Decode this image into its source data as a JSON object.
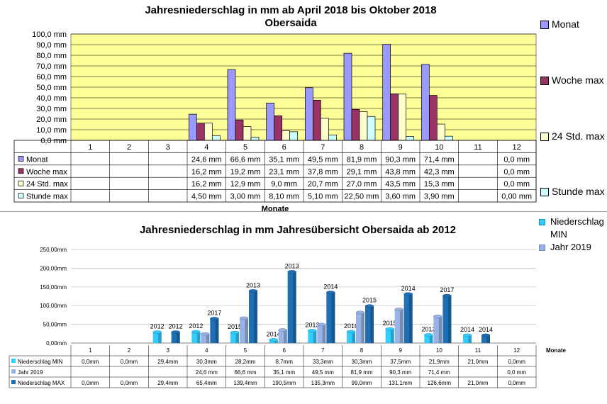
{
  "top_chart": {
    "title_line1": "Jahresniederschlag in mm ab April 2018 bis Oktober 2018",
    "title_line2": "Obersaida",
    "xlabel": "Monate",
    "legend": [
      "Monat",
      "Woche max",
      "24 Std. max",
      "Stunde max"
    ]
  },
  "bottom_chart": {
    "title": "Jahresniederschlag in mm  Jahresübersicht Obersaida ab 2012",
    "xlabel": "Monate",
    "legend": [
      "Niederschlag MIN",
      "Jahr 2019"
    ]
  },
  "chart_data": [
    {
      "type": "bar",
      "title": "Jahresniederschlag in mm ab April 2018 bis Oktober 2018 Obersaida",
      "xlabel": "Monate",
      "ylabel": "",
      "ylim": [
        0,
        100
      ],
      "yticks": [
        "0,0 mm",
        "10,0 mm",
        "20,0 mm",
        "30,0 mm",
        "40,0 mm",
        "50,0 mm",
        "60,0 mm",
        "70,0 mm",
        "80,0 mm",
        "90,0 mm",
        "100,0 mm"
      ],
      "plot_background": "#ffff99",
      "categories": [
        "1",
        "2",
        "3",
        "4",
        "5",
        "6",
        "7",
        "8",
        "9",
        "10",
        "11",
        "12"
      ],
      "series": [
        {
          "name": "Monat",
          "color": "#9999ff",
          "values": [
            null,
            null,
            null,
            24.6,
            66.6,
            35.1,
            49.5,
            81.9,
            90.3,
            71.4,
            null,
            0.0
          ],
          "labels": [
            "",
            "",
            "",
            "24,6 mm",
            "66,6 mm",
            "35,1 mm",
            "49,5 mm",
            "81,9 mm",
            "90,3 mm",
            "71,4 mm",
            "",
            "0,0 mm"
          ]
        },
        {
          "name": "Woche max",
          "color": "#993366",
          "values": [
            null,
            null,
            null,
            16.2,
            19.2,
            23.1,
            37.8,
            29.1,
            43.8,
            42.3,
            null,
            0.0
          ],
          "labels": [
            "",
            "",
            "",
            "16,2 mm",
            "19,2 mm",
            "23,1 mm",
            "37,8 mm",
            "29,1 mm",
            "43,8 mm",
            "42,3 mm",
            "",
            "0,0 mm"
          ]
        },
        {
          "name": "24 Std. max",
          "color": "#ffffcc",
          "values": [
            null,
            null,
            null,
            16.2,
            12.9,
            9.0,
            20.7,
            27.0,
            43.5,
            15.3,
            null,
            0.0
          ],
          "labels": [
            "",
            "",
            "",
            "16,2 mm",
            "12,9 mm",
            "9,0 mm",
            "20,7 mm",
            "27,0 mm",
            "43,5 mm",
            "15,3 mm",
            "",
            "0,0 mm"
          ]
        },
        {
          "name": "Stunde max",
          "color": "#ccffff",
          "values": [
            null,
            null,
            null,
            4.5,
            3.0,
            8.1,
            5.1,
            22.5,
            3.6,
            3.9,
            null,
            0.0
          ],
          "labels": [
            "",
            "",
            "",
            "4,50 mm",
            "3,00 mm",
            "8,10 mm",
            "5,10 mm",
            "22,50 mm",
            "3,60 mm",
            "3,90 mm",
            "",
            "0,00 mm"
          ]
        }
      ]
    },
    {
      "type": "bar",
      "title": "Jahresniederschlag in mm  Jahresübersicht Obersaida ab 2012",
      "xlabel": "Monate",
      "ylabel": "",
      "ylim": [
        0,
        250
      ],
      "yticks": [
        "0,00mm",
        "50,00mm",
        "100,00mm",
        "150,00mm",
        "200,00mm",
        "250,00mm"
      ],
      "categories": [
        "1",
        "2",
        "3",
        "4",
        "5",
        "6",
        "7",
        "8",
        "9",
        "10",
        "11",
        "12"
      ],
      "series": [
        {
          "name": "Niederschlag MIN",
          "color": "#33ccff",
          "values": [
            0.0,
            0.0,
            29.4,
            30.3,
            28.2,
            8.7,
            33.3,
            30.3,
            37.5,
            21.9,
            21.0,
            0.0
          ],
          "labels": [
            "0,0mm",
            "0,0mm",
            "29,4mm",
            "30,3mm",
            "28,2mm",
            "8,7mm",
            "33,3mm",
            "30,3mm",
            "37,5mm",
            "21,9mm",
            "21,0mm",
            "0,0mm"
          ],
          "year_labels": [
            "",
            "",
            "2012",
            "2012",
            "2015",
            "2014",
            "2013",
            "2016",
            "2015",
            "2012",
            "2014",
            ""
          ]
        },
        {
          "name": "Jahr 2019",
          "color": "#99b3e6",
          "values": [
            null,
            null,
            null,
            24.6,
            66.6,
            35.1,
            49.5,
            81.9,
            90.3,
            71.4,
            null,
            0.0
          ],
          "labels": [
            "",
            "",
            "",
            "24,6 mm",
            "66,6 mm",
            "35,1 mm",
            "49,5 mm",
            "81,9 mm",
            "90,3 mm",
            "71,4 mm",
            "",
            "0,0 mm"
          ]
        },
        {
          "name": "Niederschlag MAX",
          "color": "#1f6fb5",
          "values": [
            0.0,
            0.0,
            29.4,
            65.4,
            139.4,
            190.5,
            135.3,
            99.0,
            131.1,
            126.6,
            21.0,
            0.0
          ],
          "labels": [
            "0,0mm",
            "0,0mm",
            "29,4mm",
            "65,4mm",
            "139,4mm",
            "190,5mm",
            "135,3mm",
            "99,0mm",
            "131,1mm",
            "126,6mm",
            "21,0mm",
            "0,0mm"
          ],
          "year_labels": [
            "",
            "",
            "2012",
            "2017",
            "2013",
            "2013",
            "2014",
            "2015",
            "2014",
            "2017",
            "2014",
            ""
          ]
        }
      ]
    }
  ]
}
